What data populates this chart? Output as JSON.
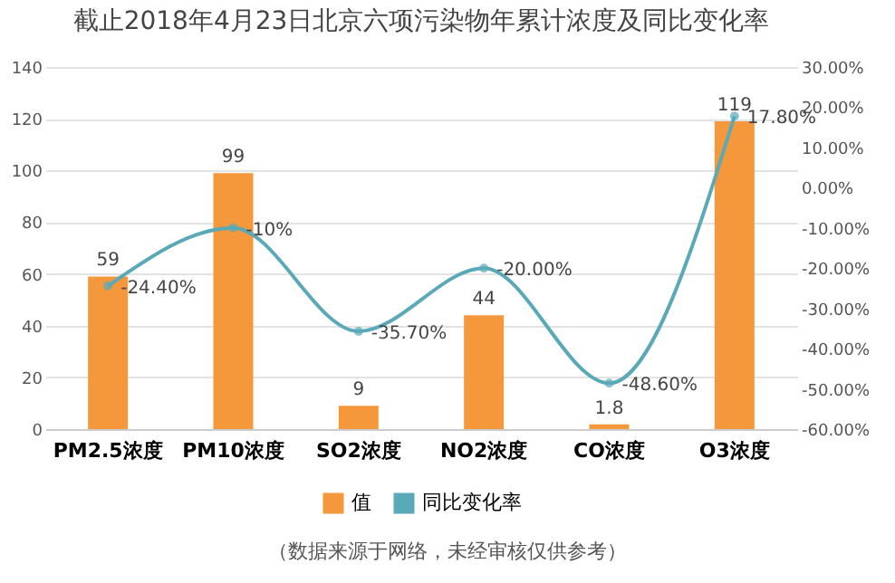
{
  "chart_data": {
    "type": "bar",
    "title": "截止2018年4月23日北京六项污染物年累计浓度及同比变化率",
    "categories": [
      "PM2.5浓度",
      "PM10浓度",
      "SO2浓度",
      "NO2浓度",
      "CO浓度",
      "O3浓度"
    ],
    "series": [
      {
        "name": "值",
        "color": "#f5973b",
        "values": [
          59,
          99,
          9,
          44,
          1.8,
          119
        ]
      },
      {
        "name": "同比变化率",
        "type": "line",
        "axis": "y2",
        "color": "#5aa9b8",
        "values": [
          -24.4,
          -10,
          -35.7,
          -20,
          -48.6,
          17.8
        ],
        "value_labels": [
          "-24.40%",
          "-10%",
          "-35.70%",
          "-20.00%",
          "-48.60%",
          "17.80%"
        ]
      }
    ],
    "data_labels": true,
    "ylim": [
      0,
      140
    ],
    "yticks": [
      0,
      20,
      40,
      60,
      80,
      100,
      120,
      140
    ],
    "y2lim": [
      -60,
      30
    ],
    "y2ticks": [
      {
        "value": -60,
        "label": "-60.00%"
      },
      {
        "value": -50,
        "label": "-50.00%"
      },
      {
        "value": -40,
        "label": "-40.00%"
      },
      {
        "value": -30,
        "label": "-30.00%"
      },
      {
        "value": -20,
        "label": "-20.00%"
      },
      {
        "value": -10,
        "label": "-10.00%"
      },
      {
        "value": 0,
        "label": "0.00%"
      },
      {
        "value": 10,
        "label": "10.00%"
      },
      {
        "value": 20,
        "label": "20.00%"
      },
      {
        "value": 30,
        "label": "30.00%"
      }
    ],
    "grid": "y",
    "legend": "bottom",
    "marker": "circle",
    "line_style": "solid",
    "annotations": [
      "（数据来源于网络，未经审核仅供参考）"
    ]
  }
}
